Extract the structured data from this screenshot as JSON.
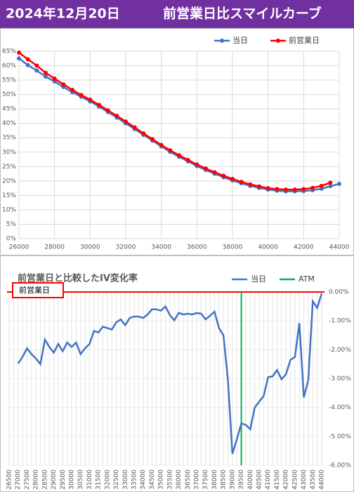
{
  "header": {
    "date": "2024年12月20日",
    "title": "前営業日比スマイルカーブ"
  },
  "chart_data": [
    {
      "type": "line",
      "x": [
        26000,
        26500,
        27000,
        27500,
        28000,
        28500,
        29000,
        29500,
        30000,
        30500,
        31000,
        31500,
        32000,
        32500,
        33000,
        33500,
        34000,
        34500,
        35000,
        35500,
        36000,
        36500,
        37000,
        37500,
        38000,
        38500,
        39000,
        39500,
        40000,
        40500,
        41000,
        41500,
        42000,
        42500,
        43000,
        43500,
        44000
      ],
      "series": [
        {
          "name": "当日",
          "color": "#4472c4",
          "values": [
            62.5,
            60.2,
            58.3,
            56.2,
            54.5,
            52.6,
            50.8,
            49.2,
            47.6,
            45.8,
            43.9,
            42,
            40,
            38,
            36,
            34,
            32,
            30.1,
            28.4,
            26.8,
            25.2,
            23.8,
            22.5,
            21.3,
            20.2,
            19.2,
            18.3,
            17.6,
            17,
            16.6,
            16.4,
            16.4,
            16.5,
            16.8,
            17.3,
            18.2,
            19
          ]
        },
        {
          "name": "前営業日",
          "color": "#ff0000",
          "values": [
            64.5,
            62.2,
            60,
            57.5,
            55.5,
            53.5,
            51.6,
            49.8,
            48.2,
            46.4,
            44.5,
            42.6,
            40.6,
            38.6,
            36.5,
            34.5,
            32.5,
            30.6,
            28.9,
            27.3,
            25.7,
            24.3,
            23,
            21.8,
            20.7,
            19.7,
            18.8,
            18.1,
            17.5,
            17.2,
            17,
            17,
            17.2,
            17.6,
            18.3,
            19.4,
            null
          ]
        }
      ],
      "xlim": [
        26000,
        44000
      ],
      "xticks": [
        26000,
        28000,
        30000,
        32000,
        34000,
        36000,
        38000,
        40000,
        42000,
        44000
      ],
      "ylim": [
        0,
        65
      ],
      "yticks": [
        {
          "value": 0,
          "label": "0%"
        },
        {
          "value": 5,
          "label": "5%"
        },
        {
          "value": 10,
          "label": "10%"
        },
        {
          "value": 15,
          "label": "15%"
        },
        {
          "value": 20,
          "label": "20%"
        },
        {
          "value": 25,
          "label": "25%"
        },
        {
          "value": 30,
          "label": "30%"
        },
        {
          "value": 35,
          "label": "35%"
        },
        {
          "value": 40,
          "label": "40%"
        },
        {
          "value": 45,
          "label": "45%"
        },
        {
          "value": 50,
          "label": "50%"
        },
        {
          "value": 55,
          "label": "55%"
        },
        {
          "value": 60,
          "label": "60%"
        },
        {
          "value": 65,
          "label": "65%"
        }
      ],
      "grid": true,
      "markers": true,
      "legend": "top-right"
    },
    {
      "type": "line",
      "title": "前営業日と比較したIV変化率",
      "categories": [
        26500,
        null,
        27000,
        null,
        27500,
        null,
        28000,
        null,
        28500,
        null,
        29000,
        null,
        29500,
        null,
        30000,
        null,
        30500,
        null,
        31000,
        null,
        31500,
        null,
        32000,
        null,
        32500,
        null,
        33000,
        null,
        33500,
        null,
        34000,
        null,
        34500,
        null,
        35000,
        null,
        35500,
        null,
        36000,
        null,
        36500,
        null,
        37000,
        null,
        37500,
        null,
        38000,
        null,
        38500,
        null,
        39000,
        null,
        39500,
        null,
        40000,
        null,
        40500,
        null,
        41000,
        null,
        41500,
        null,
        42000,
        null,
        42500,
        null,
        43000,
        null,
        43500,
        null,
        44000
      ],
      "series": [
        {
          "name": "当日",
          "color": "#4472c4",
          "values": [
            null,
            null,
            -2.48,
            -2.25,
            -1.95,
            -2.15,
            -2.3,
            -2.5,
            -1.65,
            -1.9,
            -2.1,
            -1.8,
            -2.05,
            -1.75,
            -1.9,
            -1.75,
            -2.15,
            -1.95,
            -1.8,
            -1.35,
            -1.4,
            -1.2,
            -1.25,
            -1.3,
            -1.05,
            -0.95,
            -1.15,
            -0.9,
            -0.85,
            -0.85,
            -0.9,
            -0.78,
            -0.6,
            -0.6,
            -0.65,
            -0.5,
            -0.8,
            -0.98,
            -0.72,
            -0.78,
            -0.75,
            -0.78,
            -0.73,
            -0.75,
            -0.95,
            -0.82,
            -0.68,
            -1.25,
            -1.5,
            -3.05,
            -5.6,
            -5.1,
            -4.55,
            -4.6,
            -4.75,
            -4.0,
            -3.8,
            -3.6,
            -2.95,
            -2.92,
            -2.7,
            -3.02,
            -2.85,
            -2.35,
            -2.25,
            -1.08,
            -3.65,
            -3.05,
            -0.32,
            -0.55,
            -0.05
          ]
        }
      ],
      "atm": {
        "name": "ATM",
        "x": 39500,
        "color": "#00b050"
      },
      "reference": {
        "name": "前営業日",
        "value": 0,
        "color": "#ff0000"
      },
      "ylim": [
        -6,
        0
      ],
      "yticks": [
        {
          "value": 0,
          "label": "0.00%"
        },
        {
          "value": -1,
          "label": "-1.00%"
        },
        {
          "value": -2,
          "label": "-2.00%"
        },
        {
          "value": -3,
          "label": "-3.00%"
        },
        {
          "value": -4,
          "label": "-4.00%"
        },
        {
          "value": -5,
          "label": "-5.00%"
        },
        {
          "value": -6,
          "label": "-6.00%"
        }
      ],
      "grid": true,
      "y_axis_side": "right",
      "legend": "top-right"
    }
  ]
}
